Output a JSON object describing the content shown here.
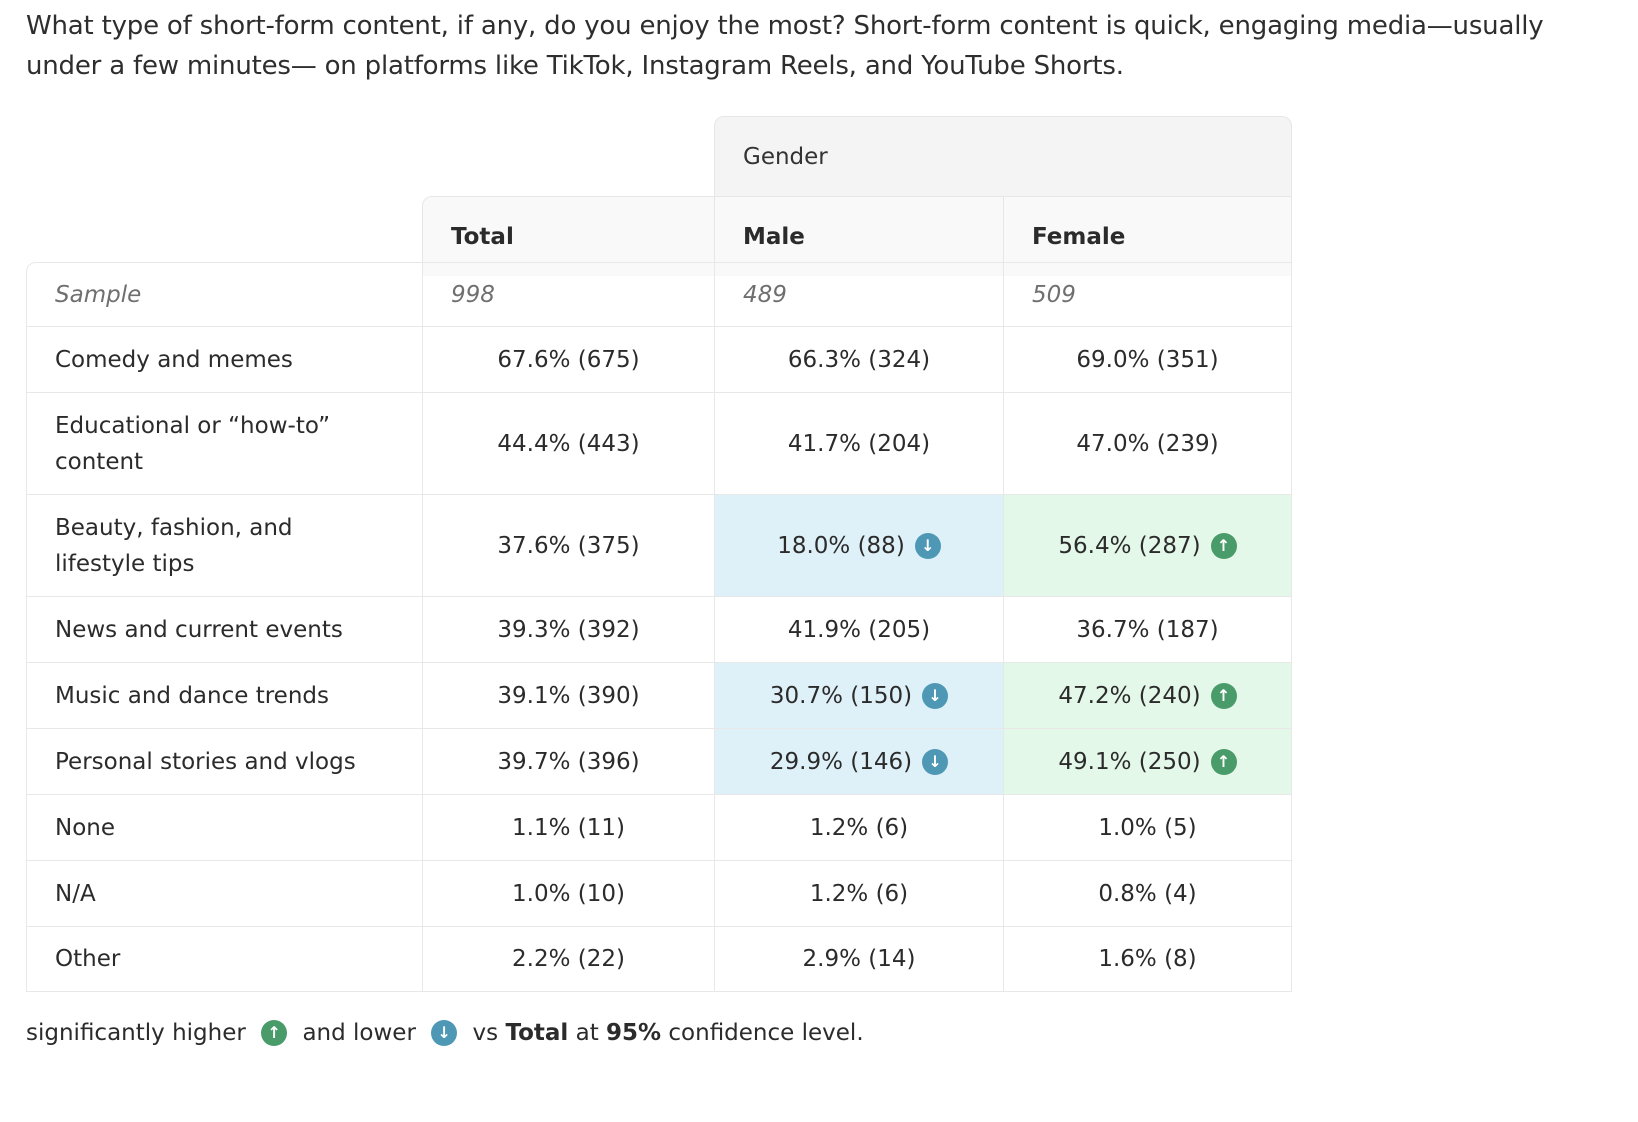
{
  "question": "What type of short-form content, if any, do you enjoy the most? Short-form content is quick, engaging media—usually under a few minutes— on platforms like TikTok, Instagram Reels, and YouTube Shorts.",
  "table": {
    "group_header": "Gender",
    "columns": [
      "Total",
      "Male",
      "Female"
    ],
    "sample": {
      "label": "Sample",
      "values": [
        "998",
        "489",
        "509"
      ]
    },
    "rows": [
      {
        "label": "Comedy and memes",
        "values": [
          "67.6% (675)",
          "66.3% (324)",
          "69.0% (351)"
        ],
        "sig": [
          "",
          "",
          ""
        ]
      },
      {
        "label": "Educational or “how-to” content",
        "values": [
          "44.4% (443)",
          "41.7% (204)",
          "47.0% (239)"
        ],
        "sig": [
          "",
          "",
          ""
        ]
      },
      {
        "label": "Beauty, fashion, and lifestyle tips",
        "values": [
          "37.6% (375)",
          "18.0% (88)",
          "56.4% (287)"
        ],
        "sig": [
          "",
          "lower",
          "higher"
        ]
      },
      {
        "label": "News and current events",
        "values": [
          "39.3% (392)",
          "41.9% (205)",
          "36.7% (187)"
        ],
        "sig": [
          "",
          "",
          ""
        ]
      },
      {
        "label": "Music and dance trends",
        "values": [
          "39.1% (390)",
          "30.7% (150)",
          "47.2% (240)"
        ],
        "sig": [
          "",
          "lower",
          "higher"
        ]
      },
      {
        "label": "Personal stories and vlogs",
        "values": [
          "39.7% (396)",
          "29.9% (146)",
          "49.1% (250)"
        ],
        "sig": [
          "",
          "lower",
          "higher"
        ]
      },
      {
        "label": "None",
        "values": [
          "1.1% (11)",
          "1.2% (6)",
          "1.0% (5)"
        ],
        "sig": [
          "",
          "",
          ""
        ]
      },
      {
        "label": "N/A",
        "values": [
          "1.0% (10)",
          "1.2% (6)",
          "0.8% (4)"
        ],
        "sig": [
          "",
          "",
          ""
        ]
      },
      {
        "label": "Other",
        "values": [
          "2.2% (22)",
          "2.9% (14)",
          "1.6% (8)"
        ],
        "sig": [
          "",
          "",
          ""
        ]
      }
    ]
  },
  "icons": {
    "higher": "arrow-up-circle-icon",
    "lower": "arrow-down-circle-icon"
  },
  "colors": {
    "higher_badge": "#4a9b6a",
    "lower_badge": "#4f98b5",
    "higher_bg": "#e3f8e9",
    "lower_bg": "#dff1f8"
  },
  "footer": {
    "part1": "significantly higher ",
    "part2": " and lower ",
    "part3": " vs ",
    "total": "Total",
    "part4": " at ",
    "level": "95%",
    "part5": " confidence level."
  }
}
